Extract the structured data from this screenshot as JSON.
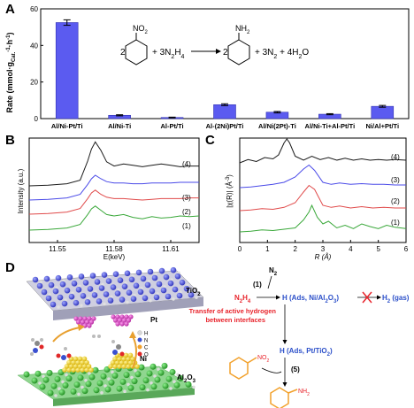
{
  "panels": {
    "a": "A",
    "b": "B",
    "c": "C",
    "d": "D"
  },
  "colors": {
    "bar": "#5b5bf0",
    "curve4": "#1a1a1a",
    "curve3": "#4a4ae8",
    "curve2": "#e04a4a",
    "curve1": "#3aa83a",
    "red": "#e8242c",
    "blue": "#2b4fc9",
    "orange": "#f2a12c"
  },
  "chart_data": [
    {
      "type": "bar",
      "categories": [
        "Al/Ni-Pt/Ti",
        "Al/Ni-Ti",
        "Al-Pt/Ti",
        "Al-(2Ni)Pt/Ti",
        "Al/Ni(2Pt)-Ti",
        "Al/Ni-Ti+Al-Pt/Ti",
        "Ni/Al+Pt/Ti"
      ],
      "values": [
        52.5,
        1.8,
        0.6,
        7.6,
        3.5,
        2.4,
        6.7
      ],
      "errors": [
        1.5,
        0.3,
        0.2,
        0.5,
        0.4,
        0.3,
        0.5
      ],
      "ylabel": "Rate (mmol·g",
      "ylabel_sub": "Cat.",
      "ylabel_tail": "·h",
      "ylabel_sup": "-1",
      "ylabel_close": ")",
      "yticks": [
        0,
        20,
        40,
        60
      ],
      "ylim": [
        0,
        60
      ],
      "reaction": {
        "reactant_coef": "2",
        "group_no2": "NO",
        "group_no2_sub": "2",
        "plus_hydrazine": "+ 3N",
        "hydrazine_sub1": "2",
        "hydrazine_h": "H",
        "hydrazine_sub2": "4",
        "product_coef": "2",
        "group_nh2": "NH",
        "group_nh2_sub": "2",
        "products": "+ 3N",
        "products_sub": "2",
        "products_tail": " + 4H",
        "products_sub2": "2",
        "products_end": "O"
      }
    },
    {
      "type": "line",
      "xlabel": "E(keV)",
      "ylabel": "Intensity (a.u.)",
      "xticks": [
        "11.55",
        "11.58",
        "11.61"
      ],
      "xlim": [
        11.535,
        11.625
      ],
      "series": [
        {
          "name": "(1)",
          "x": [
            11.535,
            11.545,
            11.555,
            11.562,
            11.566,
            11.568,
            11.57,
            11.573,
            11.576,
            11.58,
            11.585,
            11.59,
            11.595,
            11.6,
            11.605,
            11.61,
            11.615,
            11.62,
            11.625
          ],
          "y": [
            0.0,
            0.01,
            0.03,
            0.08,
            0.22,
            0.3,
            0.34,
            0.28,
            0.22,
            0.2,
            0.22,
            0.18,
            0.16,
            0.19,
            0.17,
            0.18,
            0.2,
            0.19,
            0.2
          ]
        },
        {
          "name": "(2)",
          "x": [
            11.535,
            11.545,
            11.555,
            11.562,
            11.566,
            11.568,
            11.57,
            11.573,
            11.576,
            11.58,
            11.585,
            11.59,
            11.595,
            11.6,
            11.605,
            11.61,
            11.615,
            11.62,
            11.625
          ],
          "y": [
            0.0,
            0.01,
            0.03,
            0.08,
            0.22,
            0.3,
            0.34,
            0.28,
            0.24,
            0.22,
            0.22,
            0.21,
            0.2,
            0.21,
            0.22,
            0.22,
            0.22,
            0.23,
            0.23
          ]
        },
        {
          "name": "(3)",
          "x": [
            11.535,
            11.545,
            11.555,
            11.562,
            11.566,
            11.568,
            11.57,
            11.573,
            11.576,
            11.58,
            11.585,
            11.59,
            11.595,
            11.6,
            11.605,
            11.61,
            11.615,
            11.62,
            11.625
          ],
          "y": [
            0.0,
            0.01,
            0.03,
            0.08,
            0.22,
            0.3,
            0.35,
            0.3,
            0.26,
            0.24,
            0.24,
            0.23,
            0.23,
            0.24,
            0.24,
            0.24,
            0.25,
            0.25,
            0.25
          ]
        },
        {
          "name": "(4)",
          "x": [
            11.535,
            11.545,
            11.555,
            11.562,
            11.566,
            11.568,
            11.57,
            11.573,
            11.576,
            11.58,
            11.585,
            11.59,
            11.595,
            11.6,
            11.605,
            11.61,
            11.615,
            11.62,
            11.625
          ],
          "y": [
            0.0,
            0.01,
            0.03,
            0.08,
            0.35,
            0.52,
            0.62,
            0.5,
            0.34,
            0.28,
            0.31,
            0.29,
            0.27,
            0.29,
            0.31,
            0.29,
            0.27,
            0.28,
            0.28
          ]
        }
      ]
    },
    {
      "type": "line",
      "xlabel": "R (Å)",
      "ylabel": "|χ(R)| (Å",
      "ylabel_sup": "-3",
      "ylabel_close": ")",
      "xticks": [
        "0",
        "1",
        "2",
        "3",
        "4",
        "5",
        "6"
      ],
      "xlim": [
        0,
        6
      ],
      "series": [
        {
          "name": "(1)",
          "x": [
            0,
            0.4,
            0.8,
            1.2,
            1.6,
            2.0,
            2.3,
            2.5,
            2.6,
            2.8,
            3.0,
            3.2,
            3.5,
            3.8,
            4.1,
            4.4,
            4.7,
            5.0,
            5.3,
            5.6,
            6.0
          ],
          "y": [
            0.0,
            0.01,
            0.03,
            0.02,
            0.04,
            0.06,
            0.18,
            0.3,
            0.4,
            0.22,
            0.12,
            0.16,
            0.06,
            0.1,
            0.05,
            0.12,
            0.08,
            0.05,
            0.1,
            0.07,
            0.05
          ]
        },
        {
          "name": "(2)",
          "x": [
            0,
            0.4,
            0.8,
            1.2,
            1.6,
            2.0,
            2.3,
            2.5,
            2.7,
            3.0,
            3.3,
            3.6,
            4.0,
            4.4,
            4.8,
            5.2,
            5.6,
            6.0
          ],
          "y": [
            0.0,
            0.01,
            0.03,
            0.02,
            0.05,
            0.12,
            0.28,
            0.38,
            0.32,
            0.08,
            0.05,
            0.07,
            0.04,
            0.06,
            0.04,
            0.05,
            0.04,
            0.04
          ]
        },
        {
          "name": "(3)",
          "x": [
            0,
            0.4,
            0.8,
            1.2,
            1.6,
            2.0,
            2.3,
            2.5,
            2.7,
            3.0,
            3.3,
            3.6,
            4.0,
            4.4,
            4.8,
            5.2,
            5.6,
            6.0
          ],
          "y": [
            0.0,
            0.01,
            0.03,
            0.05,
            0.08,
            0.16,
            0.28,
            0.34,
            0.26,
            0.08,
            0.05,
            0.07,
            0.05,
            0.06,
            0.05,
            0.05,
            0.04,
            0.04
          ]
        },
        {
          "name": "(4)",
          "x": [
            0,
            0.3,
            0.6,
            0.9,
            1.2,
            1.4,
            1.6,
            1.7,
            1.8,
            2.0,
            2.3,
            2.6,
            2.9,
            3.2,
            3.5,
            3.8,
            4.1,
            4.4,
            4.7,
            5.0,
            5.3,
            5.6,
            6.0
          ],
          "y": [
            0.0,
            0.05,
            0.02,
            0.08,
            0.06,
            0.12,
            0.3,
            0.36,
            0.3,
            0.1,
            0.04,
            0.1,
            0.05,
            0.08,
            0.04,
            0.07,
            0.04,
            0.06,
            0.04,
            0.05,
            0.04,
            0.05,
            0.04
          ]
        }
      ]
    }
  ],
  "mechanism": {
    "tio2": "TiO",
    "tio2_sub": "2",
    "pt": "Pt",
    "ni": "Ni",
    "al2o3": "Al",
    "al2o3_sub": "2",
    "al2o3_tail": "O",
    "al2o3_sub2": "3",
    "legend": [
      "H",
      "N",
      "C",
      "O"
    ],
    "n2_top": "N",
    "n2_top_sub": "2",
    "step1": "(1)",
    "n2h4": "N",
    "n2h4_sub": "2",
    "n2h4_h": "H",
    "n2h4_sub2": "4",
    "ads_ni": "H (Ads, Ni/Al",
    "ads_ni_sub": "2",
    "ads_ni_mid": "O",
    "ads_ni_sub2": "3",
    "ads_ni_end": ")",
    "h2gas": "H",
    "h2gas_sub": "2",
    "h2gas_tail": " (gas)",
    "transfer_line1": "Transfer of active hydrogen",
    "transfer_line2": "between interfaces",
    "ads_pt": "H (Ads, Pt/TiO",
    "ads_pt_sub": "2",
    "ads_pt_end": ")",
    "step5": "(5)",
    "nitro": "NO",
    "nitro_sub": "2",
    "amine": "NH",
    "amine_sub": "2"
  }
}
